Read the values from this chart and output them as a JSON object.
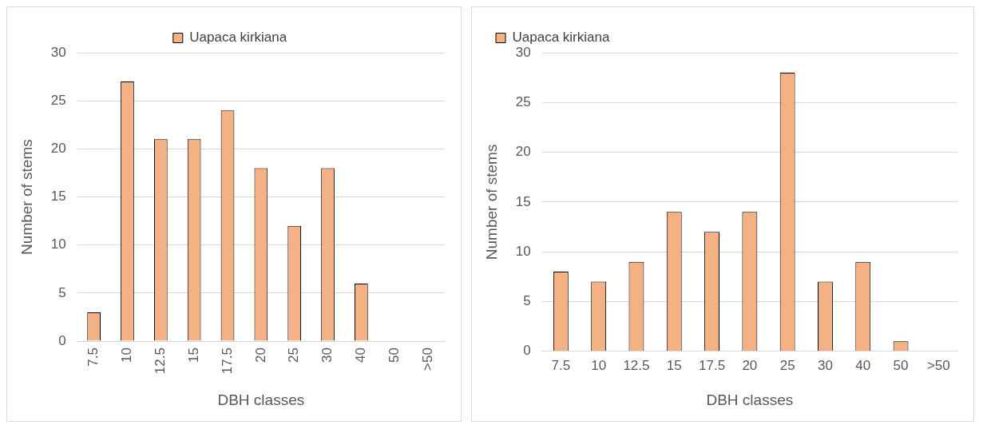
{
  "chart_data": [
    {
      "type": "bar",
      "categories": [
        "7.5",
        "10",
        "12.5",
        "15",
        "17.5",
        "20",
        "25",
        "30",
        "40",
        "50",
        ">50"
      ],
      "series": [
        {
          "name": "Uapaca kirkiana",
          "color": "#f4b183",
          "values": [
            3,
            27,
            21,
            21,
            24,
            18,
            12,
            18,
            6,
            0,
            0
          ]
        }
      ],
      "xlabel": "DBH classes",
      "ylabel": "Number of stems",
      "ylim": [
        0,
        30
      ],
      "yticks": [
        0,
        5,
        10,
        15,
        20,
        25,
        30
      ],
      "grid": "y",
      "legend": "top"
    },
    {
      "type": "bar",
      "categories": [
        "7.5",
        "10",
        "12.5",
        "15",
        "17.5",
        "20",
        "25",
        "30",
        "40",
        "50",
        ">50"
      ],
      "series": [
        {
          "name": "Uapaca kirkiana",
          "color": "#f4b183",
          "values": [
            8,
            7,
            9,
            14,
            12,
            14,
            28,
            7,
            9,
            1,
            0
          ]
        }
      ],
      "xlabel": "DBH classes",
      "ylabel": "Number of stems",
      "ylim": [
        0,
        30
      ],
      "yticks": [
        0,
        5,
        10,
        15,
        20,
        25,
        30
      ],
      "grid": "y",
      "legend": "top left"
    }
  ]
}
